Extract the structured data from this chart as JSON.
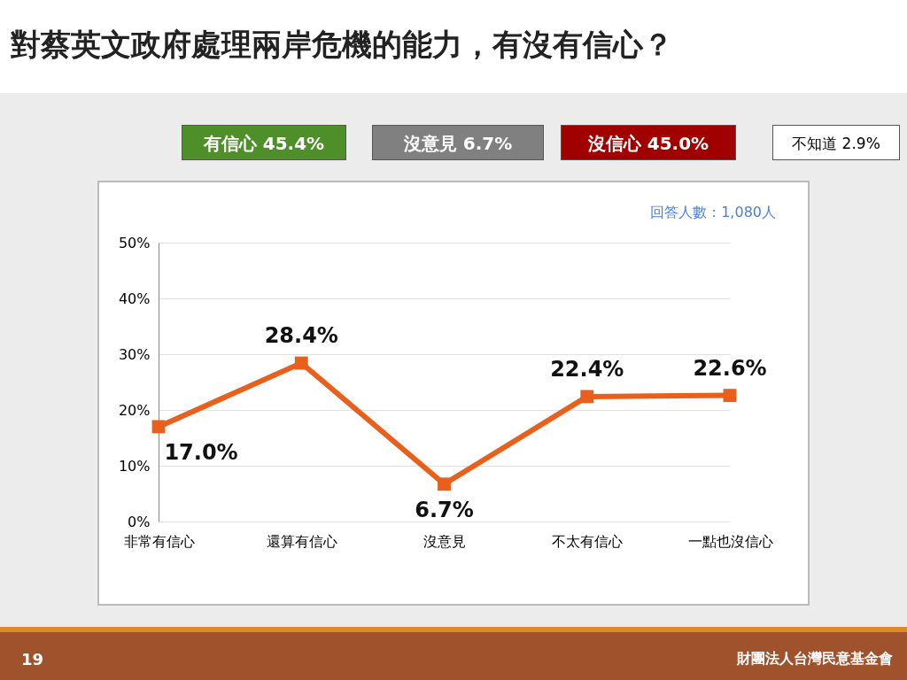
{
  "chart_data": {
    "type": "line",
    "title": "對蔡英文政府處理兩岸危機的能力，有沒有信心？",
    "categories": [
      "非常有信心",
      "還算有信心",
      "沒意見",
      "不太有信心",
      "一點也沒信心"
    ],
    "series": [
      {
        "color": "#e8601c",
        "values": [
          17.0,
          28.4,
          6.7,
          22.4,
          22.6
        ],
        "value_labels": [
          "17.0%",
          "28.4%",
          "6.7%",
          "22.4%",
          "22.6%"
        ]
      }
    ],
    "ylim": [
      0,
      50
    ],
    "yticks": [
      {
        "value": 0,
        "label": "0%"
      },
      {
        "value": 10,
        "label": "10%"
      },
      {
        "value": 20,
        "label": "20%"
      },
      {
        "value": 30,
        "label": "30%"
      },
      {
        "value": 40,
        "label": "40%"
      },
      {
        "value": 50,
        "label": "50%"
      }
    ],
    "grid": "y",
    "marker": "square",
    "line_style": "solid",
    "annotations": [
      "有信心 45.4%",
      "沒意見 6.7%",
      "沒信心 45.0%",
      "不知道 2.9%",
      "回答人數：1,080人",
      "19",
      "財團法人台灣民意基金會"
    ]
  }
}
